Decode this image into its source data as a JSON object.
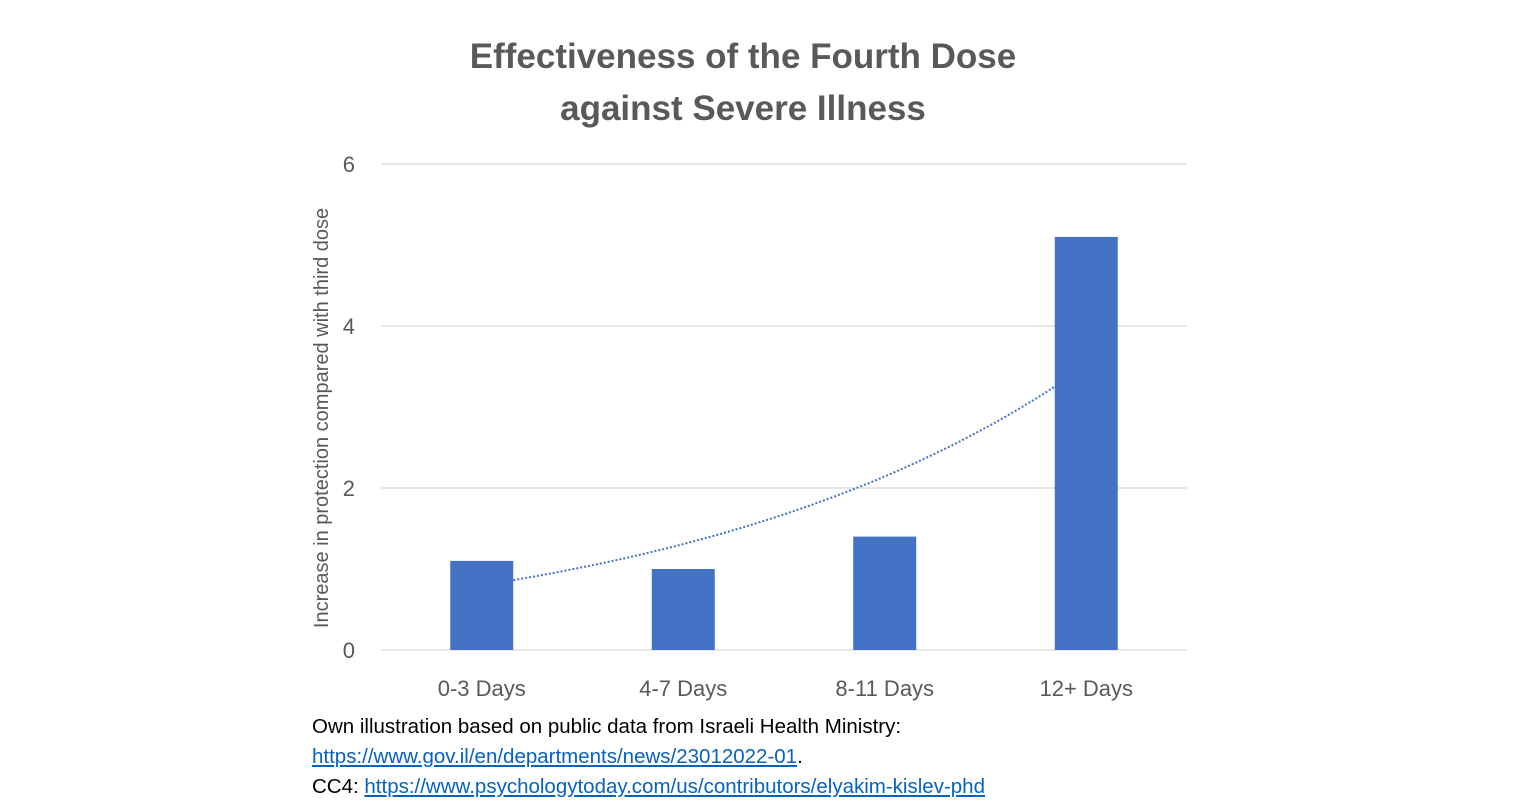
{
  "chart_data": {
    "type": "bar",
    "title_lines": [
      "Effectiveness of the Fourth Dose",
      "against Severe Illness"
    ],
    "ylabel": "Increase in protection compared with third dose",
    "xlabel": "",
    "categories": [
      "0-3 Days",
      "4-7 Days",
      "8-11 Days",
      "12+ Days"
    ],
    "values": [
      1.1,
      1.0,
      1.4,
      5.1
    ],
    "ylim": [
      0,
      6
    ],
    "yticks": [
      "0",
      "2",
      "4",
      "6"
    ],
    "grid": true,
    "trendline": "exponential",
    "colors": {
      "bar": "#4472c4",
      "trendline": "#4472c4",
      "grid": "#d9d9d9",
      "text": "#595959"
    }
  },
  "footer": {
    "line1": "Own illustration based on public data from Israeli Health Ministry:",
    "link1": "https://www.gov.il/en/departments/news/23012022-01",
    "link1_suffix": ".",
    "cc_label": "CC4: ",
    "link2": "https://www.psychologytoday.com/us/contributors/elyakim-kislev-phd"
  }
}
